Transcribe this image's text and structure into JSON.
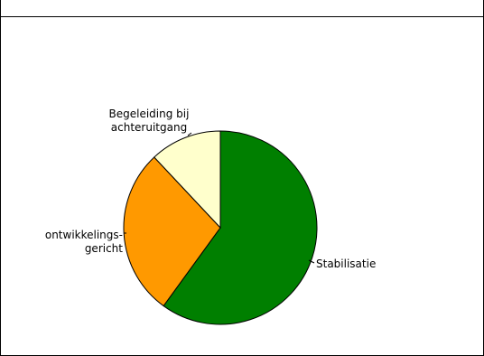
{
  "chart_data": {
    "type": "pie",
    "categories": [
      "Stabilisatie",
      "ontwikkelings-gericht",
      "Begeleiding bij achteruitgang"
    ],
    "values": [
      60,
      28,
      12
    ],
    "labels": [
      {
        "lines": [
          "Stabilisatie"
        ]
      },
      {
        "lines": [
          "ontwikkelings-",
          "gericht"
        ]
      },
      {
        "lines": [
          "Begeleiding bij",
          "achteruitgang"
        ]
      }
    ],
    "colors": [
      "#007f00",
      "#ff9900",
      "#ffffcc"
    ],
    "start_angle_deg": 0,
    "direction": "clockwise",
    "legend": "none",
    "title": ""
  }
}
